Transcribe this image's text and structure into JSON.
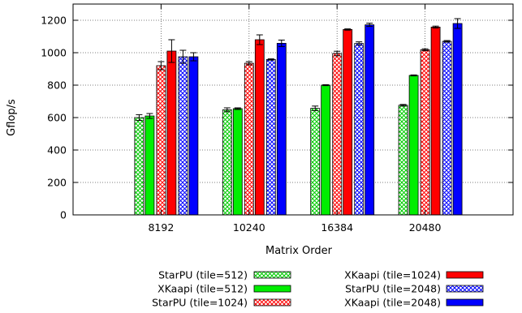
{
  "chart_data": {
    "type": "bar",
    "xlabel": "Matrix Order",
    "ylabel": "Gflop/s",
    "ylim": [
      0,
      1300
    ],
    "yticks": [
      0,
      200,
      400,
      600,
      800,
      1000,
      1200
    ],
    "grid": true,
    "legend_position": "bottom",
    "categories": [
      "8192",
      "10240",
      "16384",
      "20480"
    ],
    "series": [
      {
        "name": "StarPU (tile=512)",
        "color": "#00cc00",
        "pattern": "hatch",
        "values": [
          600,
          648,
          657,
          676
        ],
        "errors": [
          18,
          12,
          14,
          5
        ]
      },
      {
        "name": "XKaapi (tile=512)",
        "color": "#00ee00",
        "pattern": "solid",
        "values": [
          610,
          655,
          800,
          860
        ],
        "errors": [
          15,
          5,
          3,
          3
        ]
      },
      {
        "name": "StarPU (tile=1024)",
        "color": "#ff0000",
        "pattern": "hatch",
        "values": [
          920,
          935,
          995,
          1018
        ],
        "errors": [
          25,
          10,
          14,
          6
        ]
      },
      {
        "name": "XKaapi (tile=1024)",
        "color": "#ff0000",
        "pattern": "solid",
        "values": [
          1010,
          1080,
          1143,
          1158
        ],
        "errors": [
          70,
          30,
          4,
          6
        ]
      },
      {
        "name": "StarPU (tile=2048)",
        "color": "#0000ff",
        "pattern": "hatch",
        "values": [
          975,
          958,
          1057,
          1070
        ],
        "errors": [
          40,
          4,
          10,
          5
        ]
      },
      {
        "name": "XKaapi (tile=2048)",
        "color": "#0000ff",
        "pattern": "solid",
        "values": [
          975,
          1058,
          1172,
          1180
        ],
        "errors": [
          25,
          20,
          10,
          30
        ]
      }
    ]
  }
}
